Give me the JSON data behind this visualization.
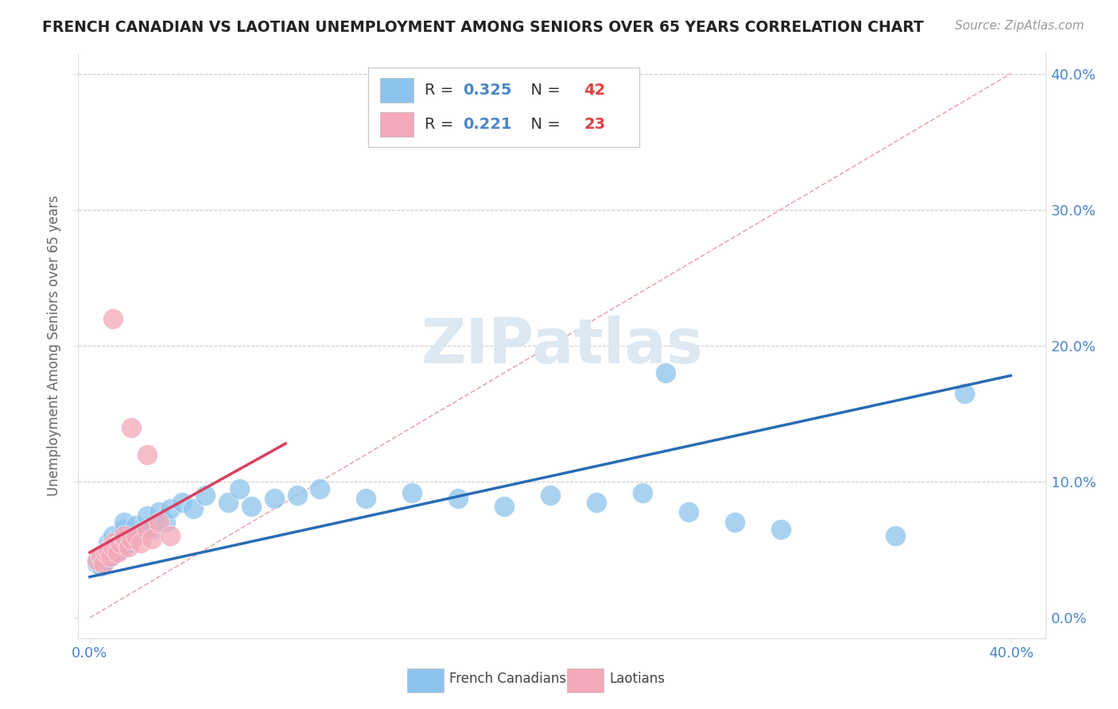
{
  "title": "FRENCH CANADIAN VS LAOTIAN UNEMPLOYMENT AMONG SENIORS OVER 65 YEARS CORRELATION CHART",
  "source": "Source: ZipAtlas.com",
  "ylabel": "Unemployment Among Seniors over 65 years",
  "xlim": [
    0.0,
    0.4
  ],
  "ylim": [
    0.0,
    0.4
  ],
  "ytick_vals": [
    0.0,
    0.1,
    0.2,
    0.3,
    0.4
  ],
  "ytick_labels": [
    "0.0%",
    "10.0%",
    "20.0%",
    "30.0%",
    "40.0%"
  ],
  "xtick_vals": [
    0.0,
    0.4
  ],
  "xtick_labels": [
    "0.0%",
    "40.0%"
  ],
  "french_canadian_color": "#8DC4ED",
  "laotian_color": "#F4A8B8",
  "french_canadian_line_color": "#2A6CB5",
  "laotian_line_color": "#D94060",
  "diagonal_color": "#E8A0A8",
  "R_fc": 0.325,
  "N_fc": 42,
  "R_la": 0.221,
  "N_la": 23,
  "watermark": "ZIPatlas",
  "fc_x": [
    0.003,
    0.005,
    0.007,
    0.008,
    0.009,
    0.01,
    0.01,
    0.012,
    0.013,
    0.015,
    0.015,
    0.017,
    0.018,
    0.02,
    0.022,
    0.025,
    0.027,
    0.03,
    0.033,
    0.035,
    0.04,
    0.045,
    0.05,
    0.06,
    0.065,
    0.07,
    0.08,
    0.09,
    0.1,
    0.12,
    0.14,
    0.16,
    0.18,
    0.2,
    0.22,
    0.24,
    0.26,
    0.28,
    0.3,
    0.35,
    0.25,
    0.38
  ],
  "fc_y": [
    0.04,
    0.038,
    0.042,
    0.055,
    0.045,
    0.06,
    0.048,
    0.058,
    0.05,
    0.065,
    0.07,
    0.055,
    0.06,
    0.068,
    0.062,
    0.075,
    0.065,
    0.078,
    0.07,
    0.08,
    0.085,
    0.08,
    0.09,
    0.085,
    0.095,
    0.082,
    0.088,
    0.09,
    0.095,
    0.088,
    0.092,
    0.088,
    0.082,
    0.09,
    0.085,
    0.092,
    0.078,
    0.07,
    0.065,
    0.06,
    0.18,
    0.165
  ],
  "la_x": [
    0.003,
    0.005,
    0.006,
    0.007,
    0.008,
    0.009,
    0.01,
    0.01,
    0.012,
    0.013,
    0.015,
    0.015,
    0.017,
    0.018,
    0.02,
    0.022,
    0.025,
    0.027,
    0.03,
    0.035,
    0.01,
    0.018,
    0.025
  ],
  "la_y": [
    0.042,
    0.045,
    0.04,
    0.048,
    0.05,
    0.045,
    0.055,
    0.052,
    0.048,
    0.055,
    0.058,
    0.06,
    0.052,
    0.058,
    0.06,
    0.055,
    0.065,
    0.058,
    0.07,
    0.06,
    0.22,
    0.14,
    0.12
  ],
  "fc_line_x": [
    0.0,
    0.4
  ],
  "fc_line_y": [
    0.03,
    0.178
  ],
  "la_line_x": [
    0.0,
    0.085
  ],
  "la_line_y": [
    0.048,
    0.128
  ]
}
